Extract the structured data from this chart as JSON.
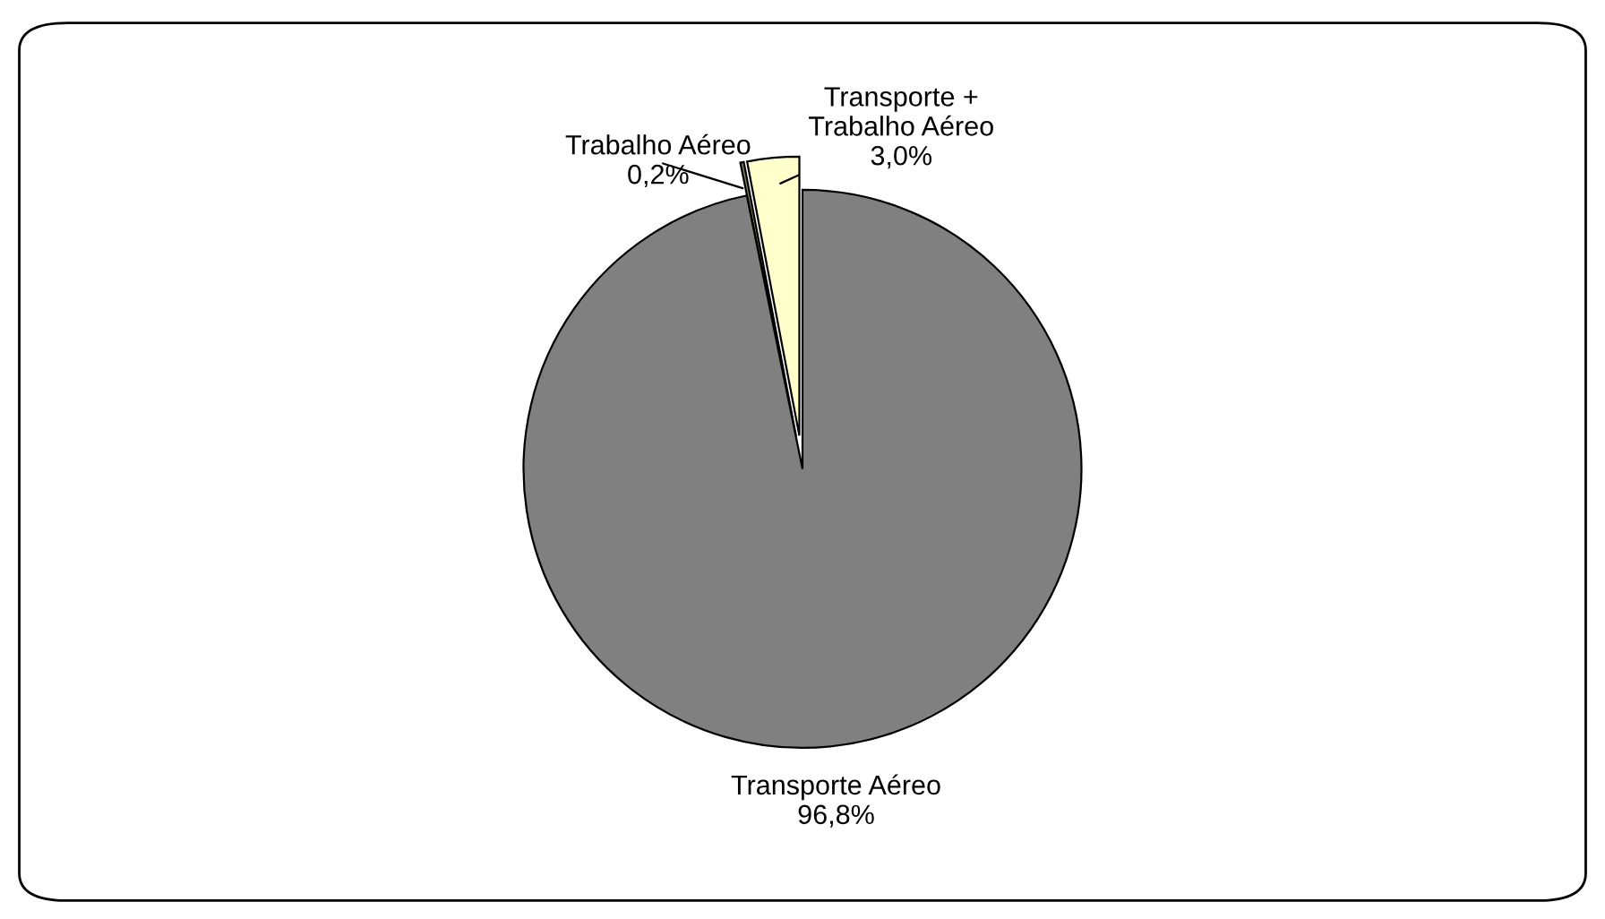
{
  "chart_data": {
    "type": "pie",
    "categories": [
      "Transporte +\nTrabalho Aéreo",
      "Trabalho Aéreo",
      "Transporte Aéreo"
    ],
    "values": [
      3.0,
      0.2,
      96.8
    ],
    "value_labels": [
      "3,0%",
      "0,2%",
      "96,8%"
    ],
    "colors": [
      "#ffffcc",
      "#808060",
      "#808080"
    ],
    "legend": false
  }
}
